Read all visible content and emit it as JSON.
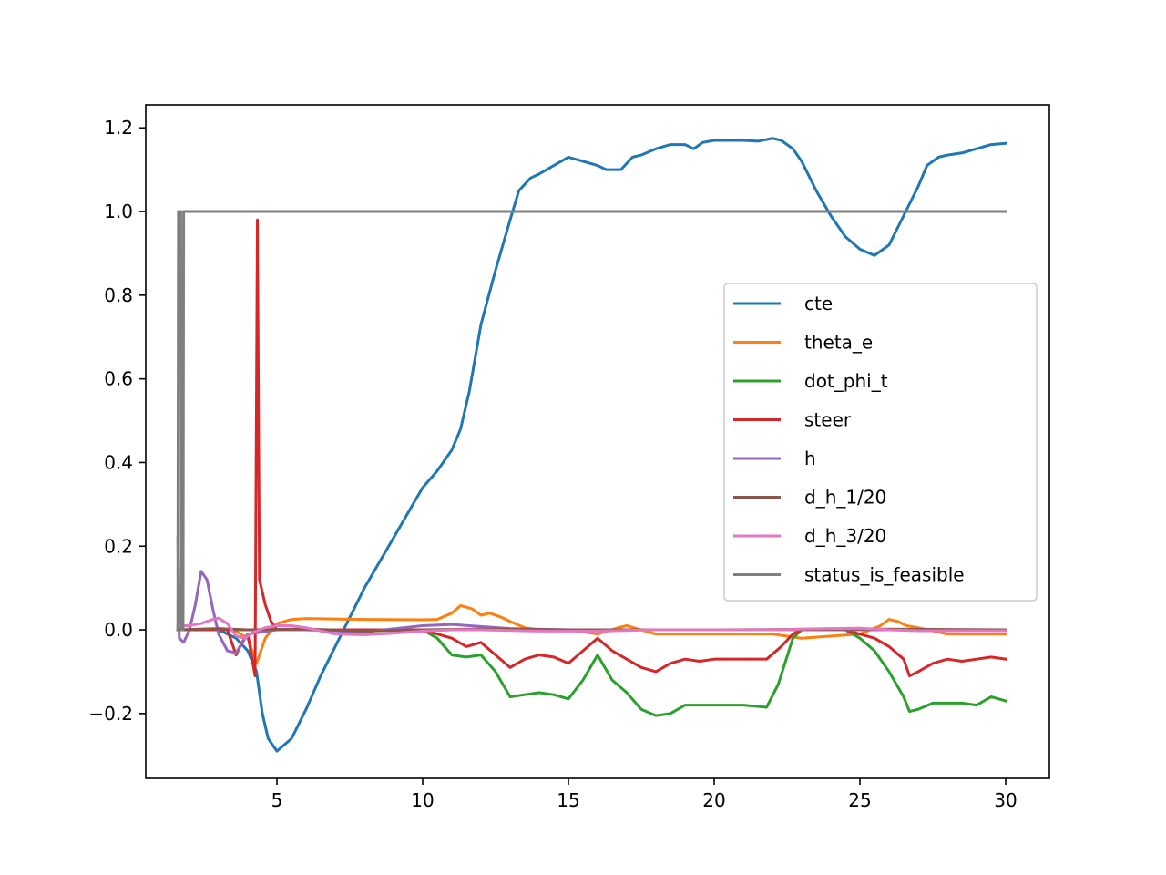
{
  "chart_data": {
    "type": "line",
    "title": "",
    "xlabel": "",
    "ylabel": "",
    "xlim": [
      0.5,
      31.5
    ],
    "ylim": [
      -0.355,
      1.255
    ],
    "xticks": [
      5,
      10,
      15,
      20,
      25,
      30
    ],
    "xtick_labels": [
      "5",
      "10",
      "15",
      "20",
      "25",
      "30"
    ],
    "yticks": [
      -0.2,
      0.0,
      0.2,
      0.4,
      0.6,
      0.8,
      1.0,
      1.2
    ],
    "ytick_labels": [
      "−0.2",
      "0.0",
      "0.2",
      "0.4",
      "0.6",
      "0.8",
      "1.0",
      "1.2"
    ],
    "grid": false,
    "legend_position": "center-right",
    "series": [
      {
        "name": "cte",
        "color": "#1f77b4",
        "points": [
          [
            1.6,
            0.0
          ],
          [
            3.0,
            0.0
          ],
          [
            3.6,
            -0.02
          ],
          [
            4.0,
            -0.05
          ],
          [
            4.3,
            -0.1
          ],
          [
            4.5,
            -0.2
          ],
          [
            4.7,
            -0.26
          ],
          [
            5.0,
            -0.29
          ],
          [
            5.5,
            -0.26
          ],
          [
            6.0,
            -0.19
          ],
          [
            6.5,
            -0.11
          ],
          [
            7.0,
            -0.04
          ],
          [
            7.5,
            0.03
          ],
          [
            8.0,
            0.1
          ],
          [
            8.5,
            0.16
          ],
          [
            9.0,
            0.22
          ],
          [
            9.5,
            0.28
          ],
          [
            10.0,
            0.34
          ],
          [
            10.5,
            0.38
          ],
          [
            11.0,
            0.43
          ],
          [
            11.3,
            0.48
          ],
          [
            11.6,
            0.57
          ],
          [
            12.0,
            0.73
          ],
          [
            12.5,
            0.86
          ],
          [
            13.0,
            0.98
          ],
          [
            13.3,
            1.05
          ],
          [
            13.7,
            1.08
          ],
          [
            14.0,
            1.09
          ],
          [
            14.5,
            1.11
          ],
          [
            15.0,
            1.13
          ],
          [
            15.5,
            1.12
          ],
          [
            16.0,
            1.11
          ],
          [
            16.3,
            1.1
          ],
          [
            16.8,
            1.1
          ],
          [
            17.2,
            1.13
          ],
          [
            17.5,
            1.135
          ],
          [
            18.0,
            1.15
          ],
          [
            18.5,
            1.16
          ],
          [
            19.0,
            1.16
          ],
          [
            19.3,
            1.15
          ],
          [
            19.6,
            1.165
          ],
          [
            20.0,
            1.17
          ],
          [
            21.0,
            1.17
          ],
          [
            21.5,
            1.168
          ],
          [
            22.0,
            1.175
          ],
          [
            22.3,
            1.17
          ],
          [
            22.7,
            1.15
          ],
          [
            23.0,
            1.12
          ],
          [
            23.5,
            1.05
          ],
          [
            24.0,
            0.99
          ],
          [
            24.5,
            0.94
          ],
          [
            25.0,
            0.91
          ],
          [
            25.5,
            0.895
          ],
          [
            26.0,
            0.92
          ],
          [
            26.5,
            0.99
          ],
          [
            27.0,
            1.06
          ],
          [
            27.3,
            1.11
          ],
          [
            27.7,
            1.13
          ],
          [
            28.0,
            1.135
          ],
          [
            28.5,
            1.14
          ],
          [
            29.0,
            1.15
          ],
          [
            29.5,
            1.16
          ],
          [
            30.0,
            1.163
          ]
        ]
      },
      {
        "name": "theta_e",
        "color": "#ff7f0e",
        "points": [
          [
            1.6,
            0.0
          ],
          [
            3.5,
            0.0
          ],
          [
            4.0,
            -0.02
          ],
          [
            4.3,
            -0.08
          ],
          [
            4.6,
            -0.02
          ],
          [
            5.0,
            0.015
          ],
          [
            5.5,
            0.025
          ],
          [
            6.0,
            0.027
          ],
          [
            8.0,
            0.025
          ],
          [
            10.0,
            0.024
          ],
          [
            10.5,
            0.025
          ],
          [
            11.0,
            0.04
          ],
          [
            11.3,
            0.058
          ],
          [
            11.7,
            0.05
          ],
          [
            12.0,
            0.035
          ],
          [
            12.3,
            0.04
          ],
          [
            12.7,
            0.03
          ],
          [
            13.0,
            0.02
          ],
          [
            13.5,
            0.005
          ],
          [
            14.0,
            0.0
          ],
          [
            15.0,
            0.0
          ],
          [
            16.0,
            -0.01
          ],
          [
            16.7,
            0.005
          ],
          [
            17.0,
            0.01
          ],
          [
            18.0,
            -0.01
          ],
          [
            20.0,
            -0.01
          ],
          [
            21.5,
            -0.01
          ],
          [
            22.0,
            -0.01
          ],
          [
            23.0,
            -0.02
          ],
          [
            24.0,
            -0.015
          ],
          [
            25.0,
            -0.01
          ],
          [
            25.7,
            0.01
          ],
          [
            26.0,
            0.025
          ],
          [
            26.3,
            0.02
          ],
          [
            26.6,
            0.01
          ],
          [
            27.0,
            0.005
          ],
          [
            28.0,
            -0.01
          ],
          [
            30.0,
            -0.01
          ]
        ]
      },
      {
        "name": "dot_phi_t",
        "color": "#2ca02c",
        "points": [
          [
            1.6,
            0.0
          ],
          [
            10.0,
            0.0
          ],
          [
            10.5,
            -0.02
          ],
          [
            11.0,
            -0.06
          ],
          [
            11.5,
            -0.065
          ],
          [
            12.0,
            -0.06
          ],
          [
            12.5,
            -0.1
          ],
          [
            13.0,
            -0.16
          ],
          [
            13.5,
            -0.155
          ],
          [
            14.0,
            -0.15
          ],
          [
            14.5,
            -0.155
          ],
          [
            15.0,
            -0.165
          ],
          [
            15.5,
            -0.12
          ],
          [
            16.0,
            -0.06
          ],
          [
            16.5,
            -0.12
          ],
          [
            17.0,
            -0.15
          ],
          [
            17.5,
            -0.19
          ],
          [
            18.0,
            -0.205
          ],
          [
            18.5,
            -0.2
          ],
          [
            19.0,
            -0.18
          ],
          [
            19.5,
            -0.18
          ],
          [
            20.0,
            -0.18
          ],
          [
            21.0,
            -0.18
          ],
          [
            21.8,
            -0.185
          ],
          [
            22.2,
            -0.13
          ],
          [
            22.7,
            -0.02
          ],
          [
            23.0,
            0.0
          ],
          [
            24.5,
            0.0
          ],
          [
            25.0,
            -0.02
          ],
          [
            25.5,
            -0.05
          ],
          [
            26.0,
            -0.1
          ],
          [
            26.5,
            -0.16
          ],
          [
            26.7,
            -0.195
          ],
          [
            27.0,
            -0.19
          ],
          [
            27.5,
            -0.175
          ],
          [
            28.0,
            -0.175
          ],
          [
            28.5,
            -0.175
          ],
          [
            29.0,
            -0.18
          ],
          [
            29.5,
            -0.16
          ],
          [
            30.0,
            -0.17
          ]
        ]
      },
      {
        "name": "steer",
        "color": "#d62728",
        "points": [
          [
            1.6,
            0.0
          ],
          [
            3.3,
            0.0
          ],
          [
            3.6,
            -0.06
          ],
          [
            3.8,
            -0.03
          ],
          [
            4.0,
            -0.01
          ],
          [
            4.25,
            -0.11
          ],
          [
            4.33,
            0.98
          ],
          [
            4.4,
            0.12
          ],
          [
            4.6,
            0.06
          ],
          [
            4.8,
            0.02
          ],
          [
            5.0,
            0.0
          ],
          [
            10.0,
            0.0
          ],
          [
            11.0,
            -0.02
          ],
          [
            11.5,
            -0.04
          ],
          [
            12.0,
            -0.03
          ],
          [
            12.5,
            -0.06
          ],
          [
            13.0,
            -0.09
          ],
          [
            13.5,
            -0.07
          ],
          [
            14.0,
            -0.06
          ],
          [
            14.5,
            -0.065
          ],
          [
            15.0,
            -0.08
          ],
          [
            15.5,
            -0.05
          ],
          [
            16.0,
            -0.02
          ],
          [
            16.5,
            -0.05
          ],
          [
            17.0,
            -0.07
          ],
          [
            17.5,
            -0.09
          ],
          [
            18.0,
            -0.1
          ],
          [
            18.5,
            -0.08
          ],
          [
            19.0,
            -0.07
          ],
          [
            19.5,
            -0.075
          ],
          [
            20.0,
            -0.07
          ],
          [
            21.0,
            -0.07
          ],
          [
            21.8,
            -0.07
          ],
          [
            22.3,
            -0.04
          ],
          [
            22.7,
            -0.01
          ],
          [
            23.0,
            0.0
          ],
          [
            24.5,
            0.0
          ],
          [
            25.0,
            -0.01
          ],
          [
            25.5,
            -0.02
          ],
          [
            26.0,
            -0.04
          ],
          [
            26.5,
            -0.07
          ],
          [
            26.7,
            -0.11
          ],
          [
            27.0,
            -0.1
          ],
          [
            27.5,
            -0.08
          ],
          [
            28.0,
            -0.07
          ],
          [
            28.5,
            -0.075
          ],
          [
            29.0,
            -0.07
          ],
          [
            29.5,
            -0.065
          ],
          [
            30.0,
            -0.07
          ]
        ]
      },
      {
        "name": "h",
        "color": "#9467bd",
        "points": [
          [
            1.6,
            0.22
          ],
          [
            1.65,
            -0.02
          ],
          [
            1.8,
            -0.03
          ],
          [
            2.0,
            0.0
          ],
          [
            2.2,
            0.06
          ],
          [
            2.4,
            0.14
          ],
          [
            2.6,
            0.12
          ],
          [
            2.8,
            0.05
          ],
          [
            3.0,
            -0.01
          ],
          [
            3.3,
            -0.05
          ],
          [
            3.6,
            -0.055
          ],
          [
            4.0,
            -0.01
          ],
          [
            4.5,
            -0.005
          ],
          [
            5.0,
            0.0
          ],
          [
            6.0,
            0.0
          ],
          [
            8.0,
            -0.005
          ],
          [
            10.0,
            0.01
          ],
          [
            11.0,
            0.013
          ],
          [
            12.0,
            0.008
          ],
          [
            13.0,
            0.003
          ],
          [
            15.0,
            0.0
          ],
          [
            20.0,
            0.0
          ],
          [
            25.0,
            0.0
          ],
          [
            30.0,
            0.0
          ]
        ]
      },
      {
        "name": "d_h_1/20",
        "color": "#8c564b",
        "points": [
          [
            1.6,
            0.0
          ],
          [
            3.0,
            0.003
          ],
          [
            4.0,
            0.0
          ],
          [
            6.0,
            0.002
          ],
          [
            8.0,
            -0.003
          ],
          [
            10.0,
            0.0
          ],
          [
            12.0,
            0.002
          ],
          [
            15.0,
            0.0
          ],
          [
            20.0,
            0.0
          ],
          [
            25.0,
            0.002
          ],
          [
            30.0,
            0.0
          ]
        ]
      },
      {
        "name": "d_h_3/20",
        "color": "#e377c2",
        "points": [
          [
            1.6,
            0.01
          ],
          [
            2.0,
            0.01
          ],
          [
            2.4,
            0.015
          ],
          [
            2.8,
            0.025
          ],
          [
            3.0,
            0.028
          ],
          [
            3.3,
            0.015
          ],
          [
            3.6,
            -0.015
          ],
          [
            3.9,
            -0.02
          ],
          [
            4.2,
            -0.005
          ],
          [
            4.6,
            0.005
          ],
          [
            5.0,
            0.01
          ],
          [
            5.5,
            0.01
          ],
          [
            6.0,
            0.005
          ],
          [
            7.0,
            -0.01
          ],
          [
            8.0,
            -0.012
          ],
          [
            9.0,
            -0.008
          ],
          [
            10.0,
            -0.003
          ],
          [
            11.0,
            0.0
          ],
          [
            12.0,
            0.0
          ],
          [
            14.0,
            -0.003
          ],
          [
            16.0,
            -0.003
          ],
          [
            18.0,
            0.0
          ],
          [
            20.0,
            0.0
          ],
          [
            22.5,
            0.0
          ],
          [
            23.0,
            0.002
          ],
          [
            24.0,
            0.003
          ],
          [
            25.0,
            0.004
          ],
          [
            26.0,
            0.0
          ],
          [
            27.0,
            -0.002
          ],
          [
            28.0,
            -0.002
          ],
          [
            30.0,
            -0.002
          ]
        ]
      },
      {
        "name": "status_is_feasible",
        "color": "#7f7f7f",
        "points": [
          [
            1.6,
            0.0
          ],
          [
            1.62,
            1.0
          ],
          [
            1.7,
            1.0
          ],
          [
            1.72,
            0.0
          ],
          [
            1.78,
            0.0
          ],
          [
            1.8,
            1.0
          ],
          [
            30.0,
            1.0
          ]
        ]
      }
    ]
  }
}
